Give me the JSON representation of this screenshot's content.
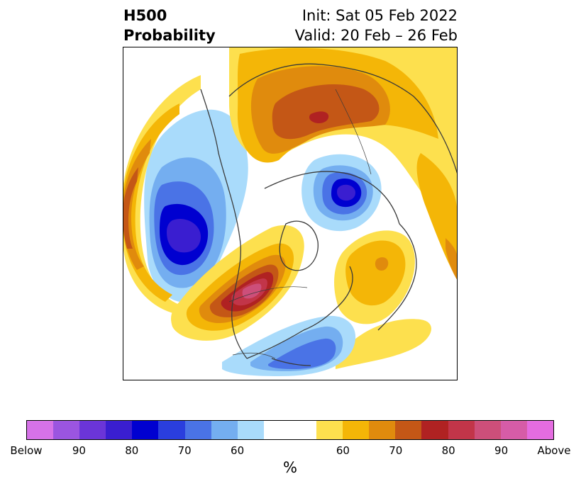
{
  "title": {
    "left_line1": "H500",
    "left_line2": "Probability",
    "right_line1": "Init: Sat 05 Feb 2022",
    "right_line2": "Valid: 20 Feb – 26 Feb"
  },
  "colorbar": {
    "colors": [
      "#d672e8",
      "#9b55e0",
      "#6b35d8",
      "#3a1ed0",
      "#0000d0",
      "#2a3ede",
      "#4a73e6",
      "#74aef0",
      "#a9dbfb",
      "#ffffff",
      "#ffffff",
      "#fde04e",
      "#f4b607",
      "#e08b0d",
      "#c45716",
      "#b02222",
      "#c23549",
      "#cd4f7a",
      "#d65ca7",
      "#e46ce0"
    ],
    "tick_labels": [
      "Below",
      "90",
      "80",
      "70",
      "60",
      "60",
      "70",
      "80",
      "90",
      "Above"
    ],
    "unit_label": "%"
  },
  "map": {
    "projection": "north-polar-stereographic",
    "colors": {
      "white": "#ffffff",
      "blue_light": "#a9dbfb",
      "blue_mid": "#74aef0",
      "blue": "#4a73e6",
      "blue_deep": "#0000d0",
      "purple_core": "#3a1ed0",
      "yellow": "#fde04e",
      "gold": "#f4b607",
      "orange": "#e08b0d",
      "rust": "#c45716",
      "red": "#b02222",
      "rose": "#c23549",
      "pink": "#cd4f7a",
      "coastline": "#3a3a3a"
    }
  }
}
